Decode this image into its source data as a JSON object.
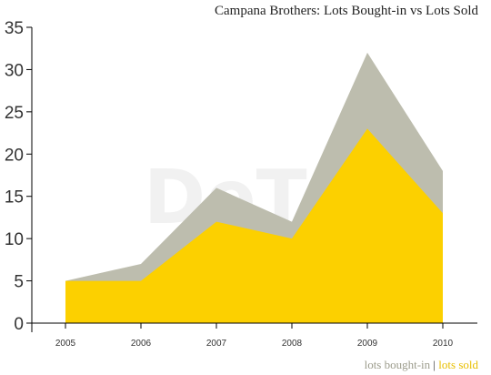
{
  "chart_data": {
    "type": "area",
    "title": "Campana Brothers: Lots Bought-in vs Lots Sold",
    "categories": [
      "2005",
      "2006",
      "2007",
      "2008",
      "2009",
      "2010"
    ],
    "series": [
      {
        "name": "lots bought-in",
        "values": [
          0,
          2,
          4,
          2,
          9,
          5
        ],
        "color": "#b9b9a9",
        "stacked": true
      },
      {
        "name": "lots sold",
        "values": [
          5,
          5,
          12,
          10,
          23,
          13
        ],
        "color": "#fcd000"
      }
    ],
    "totals": [
      5,
      7,
      16,
      12,
      32,
      18
    ],
    "ylim": [
      0,
      35
    ],
    "yticks": [
      "0",
      "5",
      "10",
      "15",
      "20",
      "25",
      "30",
      "35"
    ],
    "grid": false,
    "legend_position": "bottom-right",
    "legend_separator": "|",
    "watermark": "DeTnk."
  }
}
